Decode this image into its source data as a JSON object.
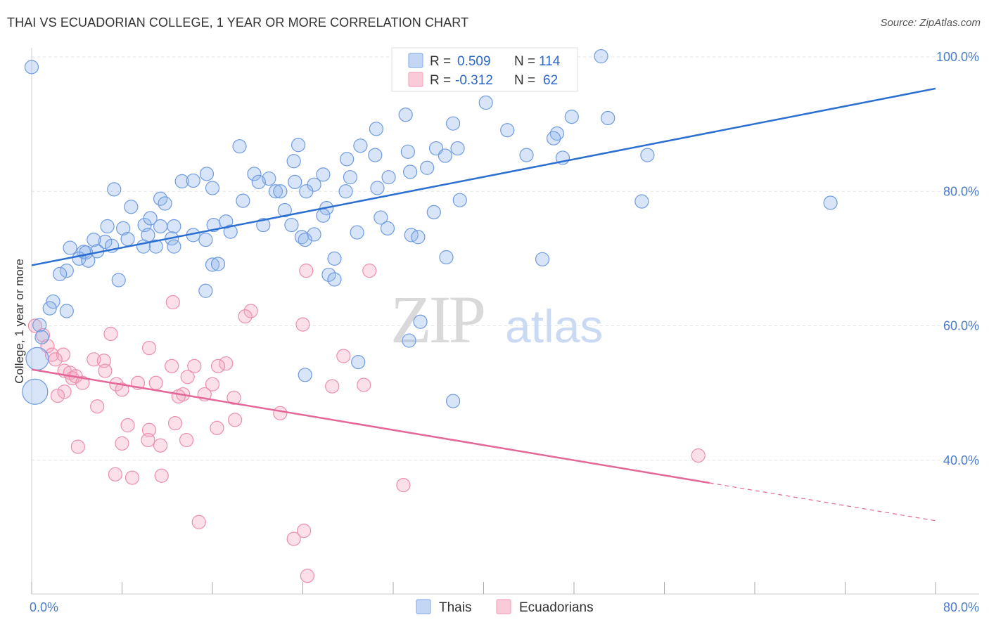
{
  "title": "THAI VS ECUADORIAN COLLEGE, 1 YEAR OR MORE CORRELATION CHART",
  "source": "Source: ZipAtlas.com",
  "watermark": {
    "zip": "ZIP",
    "atlas": "atlas"
  },
  "chart_data": {
    "type": "scatter",
    "xlabel": "",
    "ylabel": "College, 1 year or more",
    "xlim": [
      0,
      80
    ],
    "ylim": [
      20,
      100
    ],
    "x_tick_labels": [
      "0.0%",
      "80.0%"
    ],
    "y_ticks": [
      {
        "value": 100,
        "label": "100.0%"
      },
      {
        "value": 80,
        "label": "80.0%"
      },
      {
        "value": 60,
        "label": "60.0%"
      },
      {
        "value": 40,
        "label": "40.0%"
      }
    ],
    "grid": "horizontal dashed",
    "legend_top": [
      {
        "r_label": "R =",
        "r": "0.509",
        "n_label": "N =",
        "n": "114",
        "color": "#8fb4ea"
      },
      {
        "r_label": "R =",
        "r": "-0.312",
        "n_label": "N =",
        "n": "62",
        "color": "#f4a7bf"
      }
    ],
    "legend_bottom": [
      "Thais",
      "Ecuadorians"
    ],
    "series": [
      {
        "name": "Thais",
        "color": "#8fb4ea",
        "stroke": "#6f9be0",
        "trend": {
          "x0": 0,
          "y0": 69.0,
          "x1": 80,
          "y1": 95.3,
          "color": "#2a6fd1"
        },
        "points": [
          [
            50.4,
            100.1
          ],
          [
            40.2,
            93.2
          ],
          [
            33.1,
            91.4
          ],
          [
            47.8,
            91.1
          ],
          [
            51.0,
            90.9
          ],
          [
            37.3,
            90.1
          ],
          [
            30.5,
            89.3
          ],
          [
            42.1,
            89.1
          ],
          [
            46.5,
            88.6
          ],
          [
            46.2,
            87.9
          ],
          [
            18.4,
            86.7
          ],
          [
            23.6,
            86.9
          ],
          [
            29.1,
            86.8
          ],
          [
            35.8,
            86.4
          ],
          [
            37.7,
            86.4
          ],
          [
            33.3,
            85.9
          ],
          [
            30.4,
            85.4
          ],
          [
            43.8,
            85.4
          ],
          [
            36.6,
            85.3
          ],
          [
            54.5,
            85.4
          ],
          [
            47.0,
            85.0
          ],
          [
            27.9,
            84.8
          ],
          [
            23.2,
            84.5
          ],
          [
            35.0,
            83.5
          ],
          [
            33.5,
            82.9
          ],
          [
            25.8,
            82.5
          ],
          [
            15.5,
            82.6
          ],
          [
            19.7,
            82.6
          ],
          [
            31.6,
            82.1
          ],
          [
            13.3,
            81.5
          ],
          [
            14.3,
            81.6
          ],
          [
            21.0,
            81.9
          ],
          [
            20.1,
            81.4
          ],
          [
            23.3,
            81.4
          ],
          [
            25.0,
            81.0
          ],
          [
            16.0,
            80.5
          ],
          [
            7.3,
            80.3
          ],
          [
            21.6,
            80.0
          ],
          [
            27.8,
            80.0
          ],
          [
            22.0,
            80.0
          ],
          [
            24.3,
            80.0
          ],
          [
            37.9,
            78.7
          ],
          [
            54.0,
            78.5
          ],
          [
            70.7,
            78.3
          ],
          [
            11.4,
            78.9
          ],
          [
            18.7,
            78.6
          ],
          [
            11.8,
            78.2
          ],
          [
            8.8,
            77.7
          ],
          [
            26.1,
            77.5
          ],
          [
            22.4,
            77.2
          ],
          [
            30.9,
            76.1
          ],
          [
            25.8,
            76.4
          ],
          [
            10.0,
            75.0
          ],
          [
            11.4,
            74.8
          ],
          [
            12.6,
            74.8
          ],
          [
            16.1,
            75.0
          ],
          [
            17.2,
            75.5
          ],
          [
            23.0,
            75.0
          ],
          [
            20.5,
            75.0
          ],
          [
            6.7,
            74.8
          ],
          [
            8.1,
            74.5
          ],
          [
            31.5,
            74.5
          ],
          [
            28.8,
            73.9
          ],
          [
            25.0,
            73.6
          ],
          [
            33.6,
            73.5
          ],
          [
            23.9,
            73.2
          ],
          [
            10.3,
            73.5
          ],
          [
            12.4,
            73.0
          ],
          [
            14.3,
            73.5
          ],
          [
            15.4,
            72.8
          ],
          [
            8.5,
            72.9
          ],
          [
            6.5,
            72.5
          ],
          [
            5.5,
            72.8
          ],
          [
            24.2,
            72.8
          ],
          [
            7.1,
            71.9
          ],
          [
            11.0,
            71.8
          ],
          [
            9.9,
            71.8
          ],
          [
            12.6,
            71.8
          ],
          [
            3.4,
            71.6
          ],
          [
            4.6,
            71.0
          ],
          [
            4.8,
            70.9
          ],
          [
            5.8,
            71.1
          ],
          [
            36.7,
            70.2
          ],
          [
            4.2,
            70.0
          ],
          [
            5.0,
            69.7
          ],
          [
            26.8,
            70.0
          ],
          [
            45.2,
            69.9
          ],
          [
            16.0,
            69.1
          ],
          [
            16.5,
            69.2
          ],
          [
            3.1,
            68.2
          ],
          [
            2.5,
            67.7
          ],
          [
            26.3,
            67.6
          ],
          [
            7.7,
            66.8
          ],
          [
            26.8,
            66.9
          ],
          [
            15.4,
            65.2
          ],
          [
            1.9,
            63.6
          ],
          [
            1.6,
            62.6
          ],
          [
            3.1,
            62.2
          ],
          [
            34.4,
            60.6
          ],
          [
            0.7,
            60.1
          ],
          [
            0.9,
            58.3
          ],
          [
            33.4,
            57.8
          ],
          [
            0.5,
            55.1
          ],
          [
            28.9,
            54.6
          ],
          [
            24.2,
            52.7
          ],
          [
            37.3,
            48.8
          ],
          [
            0.3,
            50.2
          ],
          [
            0.0,
            98.5
          ],
          [
            28.2,
            82.1
          ],
          [
            30.6,
            80.5
          ],
          [
            10.5,
            76.0
          ],
          [
            35.6,
            76.9
          ],
          [
            17.6,
            74.0
          ],
          [
            34.2,
            73.2
          ]
        ],
        "sizes": {
          "0.5_55.1": 16,
          "0.3_50.2": 18
        }
      },
      {
        "name": "Ecuadorians",
        "color": "#f4a7bf",
        "stroke": "#ec8eac",
        "trend": {
          "x0": 0,
          "y0": 53.5,
          "x1": 80,
          "y1": 31.0,
          "solid_to": 60.0,
          "color": "#e5679a"
        },
        "points": [
          [
            24.3,
            68.2
          ],
          [
            29.9,
            68.2
          ],
          [
            12.5,
            63.5
          ],
          [
            19.4,
            62.2
          ],
          [
            18.9,
            61.4
          ],
          [
            0.3,
            60.0
          ],
          [
            24.0,
            60.2
          ],
          [
            7.0,
            58.8
          ],
          [
            1.0,
            58.6
          ],
          [
            1.4,
            57.0
          ],
          [
            10.4,
            56.7
          ],
          [
            1.8,
            55.7
          ],
          [
            2.8,
            55.7
          ],
          [
            2.1,
            55.0
          ],
          [
            5.5,
            55.0
          ],
          [
            27.6,
            55.5
          ],
          [
            6.4,
            54.8
          ],
          [
            17.2,
            54.4
          ],
          [
            16.5,
            54.0
          ],
          [
            12.4,
            54.0
          ],
          [
            14.4,
            54.0
          ],
          [
            2.9,
            53.3
          ],
          [
            6.5,
            53.3
          ],
          [
            3.4,
            53.0
          ],
          [
            3.6,
            52.2
          ],
          [
            3.9,
            52.5
          ],
          [
            13.8,
            52.4
          ],
          [
            4.5,
            51.5
          ],
          [
            9.4,
            51.5
          ],
          [
            7.5,
            51.3
          ],
          [
            11.0,
            51.5
          ],
          [
            16.0,
            51.3
          ],
          [
            26.6,
            51.0
          ],
          [
            29.4,
            51.2
          ],
          [
            2.9,
            50.2
          ],
          [
            8.0,
            50.5
          ],
          [
            13.4,
            49.8
          ],
          [
            15.3,
            49.8
          ],
          [
            2.3,
            49.6
          ],
          [
            13.0,
            49.5
          ],
          [
            17.9,
            49.3
          ],
          [
            5.8,
            48.0
          ],
          [
            12.7,
            45.5
          ],
          [
            8.5,
            45.2
          ],
          [
            16.4,
            44.8
          ],
          [
            10.4,
            44.5
          ],
          [
            13.7,
            43.0
          ],
          [
            10.3,
            43.0
          ],
          [
            8.0,
            42.5
          ],
          [
            11.4,
            42.2
          ],
          [
            4.1,
            42.0
          ],
          [
            59.0,
            40.7
          ],
          [
            7.4,
            37.9
          ],
          [
            8.9,
            37.4
          ],
          [
            11.5,
            37.7
          ],
          [
            32.9,
            36.3
          ],
          [
            14.8,
            30.8
          ],
          [
            24.1,
            29.5
          ],
          [
            23.2,
            28.3
          ],
          [
            24.4,
            22.8
          ],
          [
            22.0,
            47.0
          ],
          [
            18.0,
            46.0
          ]
        ],
        "sizes": {
          "0.3_60.0": 14
        }
      }
    ]
  }
}
